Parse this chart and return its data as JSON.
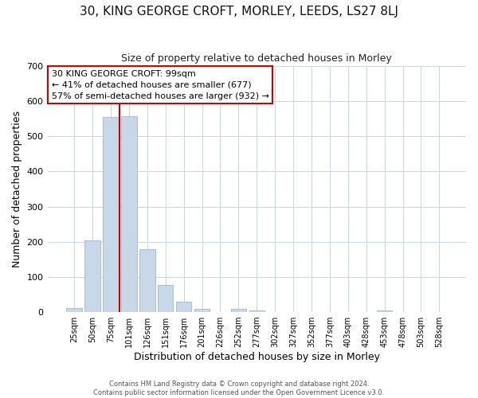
{
  "title": "30, KING GEORGE CROFT, MORLEY, LEEDS, LS27 8LJ",
  "subtitle": "Size of property relative to detached houses in Morley",
  "xlabel": "Distribution of detached houses by size in Morley",
  "ylabel": "Number of detached properties",
  "bin_labels": [
    "25sqm",
    "50sqm",
    "75sqm",
    "101sqm",
    "126sqm",
    "151sqm",
    "176sqm",
    "201sqm",
    "226sqm",
    "252sqm",
    "277sqm",
    "302sqm",
    "327sqm",
    "352sqm",
    "377sqm",
    "403sqm",
    "428sqm",
    "453sqm",
    "478sqm",
    "503sqm",
    "528sqm"
  ],
  "bar_heights": [
    12,
    205,
    555,
    558,
    180,
    78,
    30,
    10,
    0,
    10,
    5,
    0,
    0,
    0,
    0,
    0,
    0,
    5,
    0,
    0,
    0
  ],
  "bar_color": "#c8d8e8",
  "bar_edge_color": "#a0b8cc",
  "vline_x_index": 2.5,
  "vline_color": "#cc0000",
  "annotation_text": "30 KING GEORGE CROFT: 99sqm\n← 41% of detached houses are smaller (677)\n57% of semi-detached houses are larger (932) →",
  "annotation_box_facecolor": "#ffffff",
  "annotation_box_edgecolor": "#cc0000",
  "ylim": [
    0,
    700
  ],
  "yticks": [
    0,
    100,
    200,
    300,
    400,
    500,
    600,
    700
  ],
  "footer_line1": "Contains HM Land Registry data © Crown copyright and database right 2024.",
  "footer_line2": "Contains public sector information licensed under the Open Government Licence v3.0.",
  "fig_bg_color": "#ffffff",
  "plot_bg_color": "#ffffff",
  "grid_color": "#c8d4e0"
}
